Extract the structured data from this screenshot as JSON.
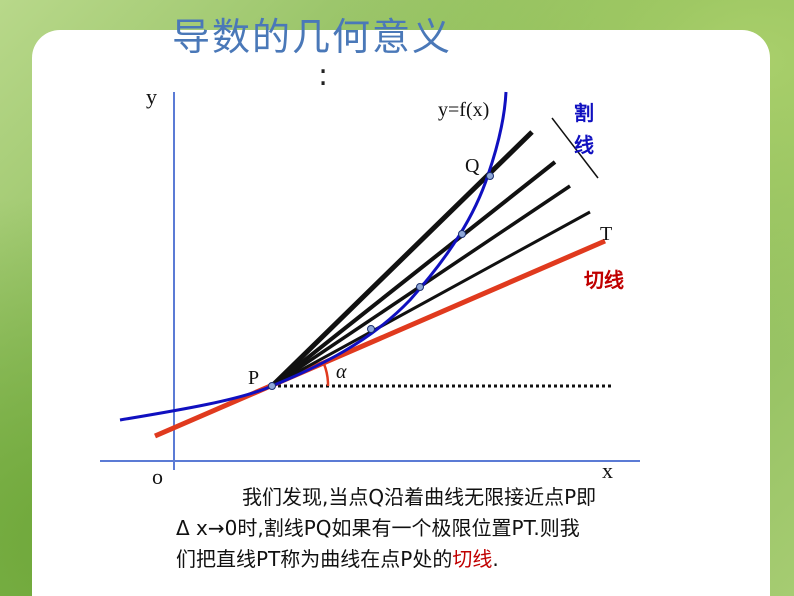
{
  "title": "导数的几何意义",
  "title_colon": ":",
  "labels": {
    "y_axis": "y",
    "x_axis": "x",
    "origin": "o",
    "curve": "y=f(x)",
    "Q": "Q",
    "P": "P",
    "T": "T",
    "alpha": "α",
    "secant": "割线",
    "tangent": "切线"
  },
  "caption": {
    "line1": "我们发现,当点Q沿着曲线无限接近点P即",
    "line2": "Δ x→0时,割线PQ如果有一个极限位置PT.则我",
    "line3_pre": "们把直线PT称为曲线在点P处的",
    "line3_highlight": "切线",
    "line3_post": "."
  },
  "colors": {
    "title": "#4a78b8",
    "curve": "#1010c0",
    "tangent": "#e03a1e",
    "secant_label": "#1010c0",
    "tangent_label": "#c00000",
    "highlight": "#c00000"
  }
}
